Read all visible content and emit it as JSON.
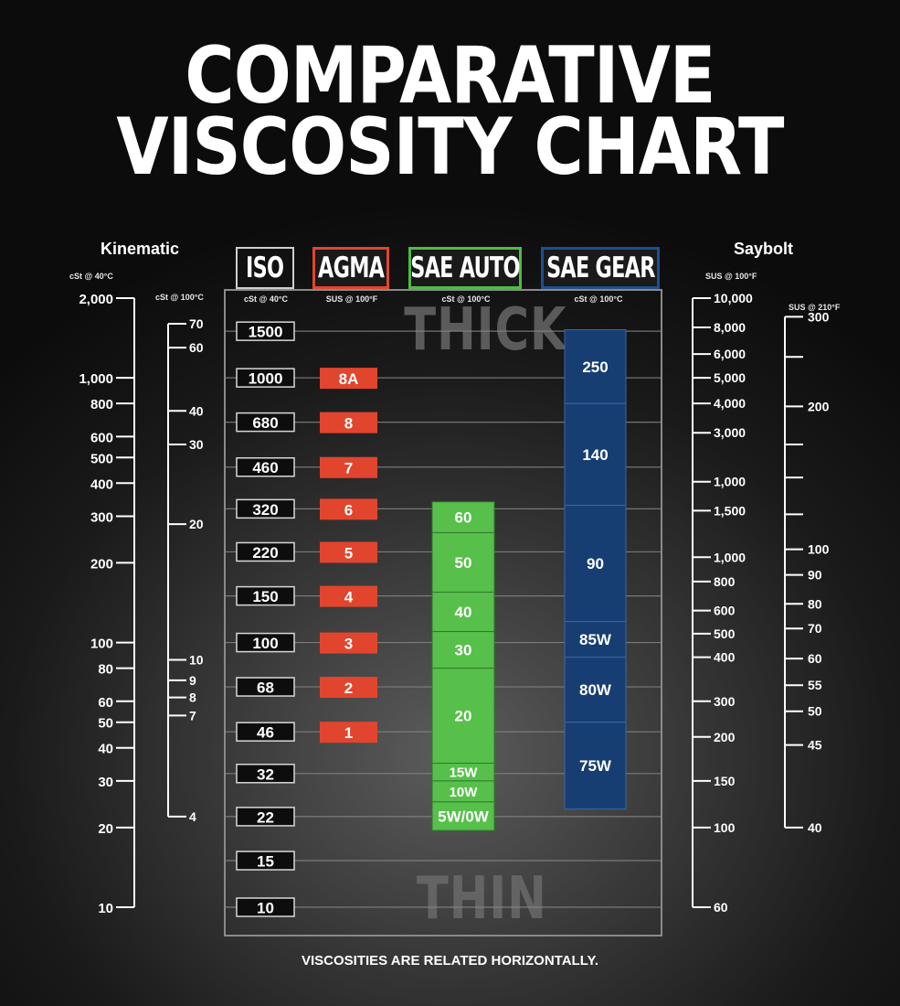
{
  "title_line1": "COMPARATIVE",
  "title_line2": "VISCOSITY CHART",
  "kinematic_title": "Kinematic",
  "saybolt_title": "Saybolt",
  "headers": {
    "iso": "ISO",
    "agma": "AGMA",
    "sae_auto": "SAE AUTO",
    "sae_gear": "SAE GEAR"
  },
  "units": {
    "kin40": "cSt @ 40°C",
    "kin100": "cSt @ 100°C",
    "iso": "cSt @ 40°C",
    "agma": "SUS @ 100°F",
    "sae_auto": "cSt @ 100°C",
    "sae_gear": "cSt @ 100°C",
    "sus100": "SUS @ 100°F",
    "sus210": "SUS @ 210°F"
  },
  "thick_label": "THICK",
  "thin_label": "THIN",
  "footer": "VISCOSITIES ARE RELATED HORIZONTALLY.",
  "colors": {
    "agma": "#e2452e",
    "sae_auto": "#56c04a",
    "sae_gear": "#173e73",
    "iso_border": "#d8d8d8"
  },
  "chart_data": {
    "type": "table",
    "value_axis": "cSt @ 40°C",
    "scale": "log",
    "ylim": [
      10,
      2000
    ],
    "kinematic_40c_ticks": [
      2000,
      1000,
      800,
      600,
      500,
      400,
      300,
      200,
      100,
      80,
      60,
      50,
      40,
      30,
      20,
      10
    ],
    "kinematic_40c_labels": [
      "2,000",
      "1,000",
      "800",
      "600",
      "500",
      "400",
      "300",
      "200",
      "100",
      "80",
      "60",
      "50",
      "40",
      "30",
      "20",
      "10"
    ],
    "kinematic_100c": [
      {
        "label": "70",
        "at_cst40": 1600
      },
      {
        "label": "60",
        "at_cst40": 1300
      },
      {
        "label": "40",
        "at_cst40": 750
      },
      {
        "label": "30",
        "at_cst40": 560
      },
      {
        "label": "20",
        "at_cst40": 280
      },
      {
        "label": "10",
        "at_cst40": 86
      },
      {
        "label": "9",
        "at_cst40": 72
      },
      {
        "label": "8",
        "at_cst40": 62
      },
      {
        "label": "7",
        "at_cst40": 53
      },
      {
        "label": "4",
        "at_cst40": 22
      }
    ],
    "iso_grades": [
      {
        "label": "1500",
        "value": 1500
      },
      {
        "label": "1000",
        "value": 1000
      },
      {
        "label": "680",
        "value": 680
      },
      {
        "label": "460",
        "value": 460
      },
      {
        "label": "320",
        "value": 320
      },
      {
        "label": "220",
        "value": 220
      },
      {
        "label": "150",
        "value": 150
      },
      {
        "label": "100",
        "value": 100
      },
      {
        "label": "68",
        "value": 68
      },
      {
        "label": "46",
        "value": 46
      },
      {
        "label": "32",
        "value": 32
      },
      {
        "label": "22",
        "value": 22
      },
      {
        "label": "15",
        "value": 15
      },
      {
        "label": "10",
        "value": 10
      }
    ],
    "agma_grades": [
      {
        "label": "8A",
        "value": 1000
      },
      {
        "label": "8",
        "value": 680
      },
      {
        "label": "7",
        "value": 460
      },
      {
        "label": "6",
        "value": 320
      },
      {
        "label": "5",
        "value": 220
      },
      {
        "label": "4",
        "value": 150
      },
      {
        "label": "3",
        "value": 100
      },
      {
        "label": "2",
        "value": 68
      },
      {
        "label": "1",
        "value": 46
      }
    ],
    "sae_auto_grades": [
      {
        "label": "60",
        "from": 260,
        "to": 340
      },
      {
        "label": "50",
        "from": 155,
        "to": 260
      },
      {
        "label": "40",
        "from": 110,
        "to": 155
      },
      {
        "label": "30",
        "from": 80,
        "to": 110
      },
      {
        "label": "20",
        "from": 35,
        "to": 80
      },
      {
        "label": "15W",
        "from": 30,
        "to": 35
      },
      {
        "label": "10W",
        "from": 25,
        "to": 30
      },
      {
        "label": "5W/0W",
        "from": 19.5,
        "to": 25
      }
    ],
    "sae_gear_grades": [
      {
        "label": "250",
        "from": 800,
        "to": 1520
      },
      {
        "label": "140",
        "from": 330,
        "to": 800
      },
      {
        "label": "90",
        "from": 120,
        "to": 330
      },
      {
        "label": "85W",
        "from": 88,
        "to": 120
      },
      {
        "label": "80W",
        "from": 50,
        "to": 88
      },
      {
        "label": "75W",
        "from": 23.5,
        "to": 50
      }
    ],
    "saybolt_100f": [
      {
        "label": "10,000",
        "at_cst40": 2000
      },
      {
        "label": "8,000",
        "at_cst40": 1550
      },
      {
        "label": "6,000",
        "at_cst40": 1230
      },
      {
        "label": "5,000",
        "at_cst40": 1000
      },
      {
        "label": "4,000",
        "at_cst40": 800
      },
      {
        "label": "3,000",
        "at_cst40": 620
      },
      {
        "label": "1,000",
        "at_cst40": 405
      },
      {
        "label": "1,500",
        "at_cst40": 315
      },
      {
        "label": "1,000",
        "at_cst40": 210
      },
      {
        "label": "800",
        "at_cst40": 170
      },
      {
        "label": "600",
        "at_cst40": 132
      },
      {
        "label": "500",
        "at_cst40": 108
      },
      {
        "label": "400",
        "at_cst40": 88
      },
      {
        "label": "300",
        "at_cst40": 60
      },
      {
        "label": "200",
        "at_cst40": 44
      },
      {
        "label": "150",
        "at_cst40": 30
      },
      {
        "label": "100",
        "at_cst40": 20
      },
      {
        "label": "60",
        "at_cst40": 10
      }
    ],
    "saybolt_210f": [
      {
        "label": "300",
        "at_cst40": 1700
      },
      {
        "label": "200",
        "at_cst40": 780
      },
      {
        "label": "100",
        "at_cst40": 225
      },
      {
        "label": "90",
        "at_cst40": 180
      },
      {
        "label": "80",
        "at_cst40": 140
      },
      {
        "label": "70",
        "at_cst40": 113
      },
      {
        "label": "60",
        "at_cst40": 87
      },
      {
        "label": "55",
        "at_cst40": 69
      },
      {
        "label": "50",
        "at_cst40": 55
      },
      {
        "label": "45",
        "at_cst40": 41
      },
      {
        "label": "40",
        "at_cst40": 20
      }
    ],
    "saybolt_210f_unlabeled_ticks": [
      1200,
      560,
      420,
      305
    ]
  }
}
